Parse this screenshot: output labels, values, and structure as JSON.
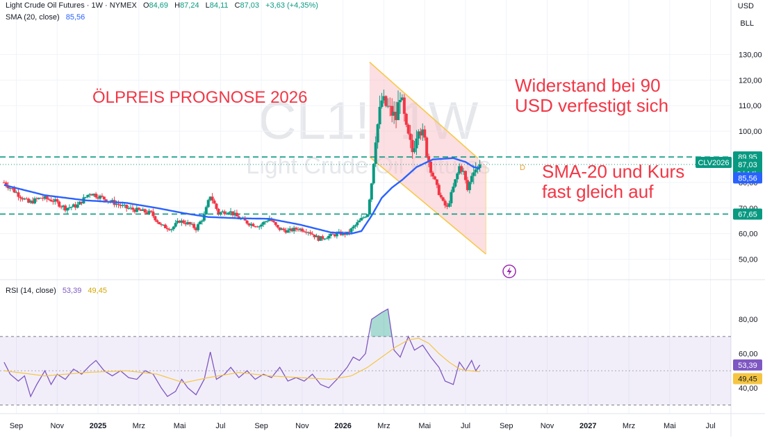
{
  "header": {
    "symbol_line": "Light Crude Oil Futures · 1W · NYMEX",
    "o_label": "O",
    "o_value": "84,69",
    "h_label": "H",
    "h_value": "87,24",
    "l_label": "L",
    "l_value": "84,11",
    "c_label": "C",
    "c_value": "87,03",
    "change": "+3,63 (+4,35%)",
    "sma_label": "SMA (20, close)",
    "sma_value": "85,56",
    "rsi_label": "RSI (14, close)",
    "rsi_value": "53,39",
    "rsi_ma_value": "49,45"
  },
  "top_right": {
    "currency": "USD",
    "unit": "BLL"
  },
  "watermark": {
    "symbol": "CL1!, 1W",
    "name": "Light Crude Oil Futures"
  },
  "annotations": {
    "title": "ÖLPREIS PROGNOSE 2026",
    "resistance_line1": "Widerstand bei 90",
    "resistance_line2": "USD verfestigt sich",
    "sma_line1": "SMA-20 und Kurs",
    "sma_line2": "fast gleich auf",
    "dividend_marker": "D"
  },
  "price_badges": {
    "resistance": "89,95",
    "last": "87,03",
    "countdown": "3d 14h",
    "sma": "85,56",
    "support": "67,65",
    "contract": "CLV2026",
    "rsi": "53,39",
    "rsi_ma": "49,45"
  },
  "colors": {
    "up": "#089981",
    "down": "#f23645",
    "sma": "#2962ff",
    "rsi": "#7e57c2",
    "rsi_ma": "#f5c542",
    "channel": "#f7c948",
    "channel_fill": "#f8c5cb",
    "level": "#089981"
  },
  "chart_data": {
    "type": "candlestick",
    "symbol": "CL1!",
    "interval": "1W",
    "y_axis": {
      "range": [
        45,
        135
      ],
      "ticks": [
        130,
        120,
        110,
        100,
        90,
        80,
        70,
        60,
        50
      ],
      "tick_labels": [
        "130,00",
        "120,00",
        "110,00",
        "100,00",
        "90,00",
        "80,00",
        "70,00",
        "60,00",
        "50,00"
      ]
    },
    "x_axis": {
      "labels": [
        "Sep",
        "Nov",
        "2025",
        "Mrz",
        "Mai",
        "Jul",
        "Sep",
        "Nov",
        "2026",
        "Mrz",
        "Mai",
        "Jul",
        "Sep",
        "Nov",
        "2027",
        "Mrz",
        "Mai",
        "Jul"
      ],
      "positions": [
        0.6,
        2.6,
        4.6,
        6.6,
        8.6,
        10.6,
        12.6,
        14.6,
        16.6,
        18.6,
        20.6,
        22.6,
        24.6,
        26.6,
        28.6,
        30.6,
        32.6,
        34.6
      ],
      "bold": [
        "2025",
        "2026",
        "2027"
      ],
      "range": [
        -0.2,
        35.6
      ]
    },
    "levels": {
      "resistance": 89.95,
      "last": 87.03,
      "support": 67.65
    },
    "channel": {
      "upper": [
        [
          17.9,
          127
        ],
        [
          23.2,
          89.5
        ]
      ],
      "lower": [
        [
          17.9,
          90
        ],
        [
          23.6,
          52
        ]
      ],
      "right_x": 23.6
    },
    "price_anchors": [
      [
        0,
        80
      ],
      [
        0.6,
        76
      ],
      [
        1.2,
        72
      ],
      [
        1.8,
        74
      ],
      [
        2.4,
        73
      ],
      [
        3.0,
        70
      ],
      [
        3.6,
        71
      ],
      [
        4.2,
        76
      ],
      [
        4.8,
        74
      ],
      [
        5.4,
        72
      ],
      [
        6.0,
        70
      ],
      [
        6.6,
        69
      ],
      [
        7.2,
        68
      ],
      [
        7.7,
        63
      ],
      [
        8.2,
        62
      ],
      [
        8.6,
        65
      ],
      [
        9.0,
        64
      ],
      [
        9.4,
        62
      ],
      [
        9.8,
        67
      ],
      [
        10.1,
        75
      ],
      [
        10.5,
        68
      ],
      [
        11.0,
        69
      ],
      [
        11.5,
        66
      ],
      [
        12.0,
        64
      ],
      [
        12.5,
        63
      ],
      [
        13.0,
        66
      ],
      [
        13.4,
        62
      ],
      [
        13.9,
        61
      ],
      [
        14.4,
        62
      ],
      [
        14.9,
        61
      ],
      [
        15.4,
        58
      ],
      [
        15.9,
        59
      ],
      [
        16.4,
        60
      ],
      [
        16.8,
        60
      ],
      [
        17.3,
        64
      ],
      [
        17.8,
        68
      ],
      [
        18.0,
        80
      ],
      [
        18.2,
        98
      ],
      [
        18.5,
        112
      ],
      [
        18.9,
        108
      ],
      [
        19.2,
        105
      ],
      [
        19.4,
        115
      ],
      [
        19.7,
        100
      ],
      [
        20.0,
        92
      ],
      [
        20.3,
        103
      ],
      [
        20.6,
        96
      ],
      [
        20.9,
        85
      ],
      [
        21.2,
        78
      ],
      [
        21.5,
        72
      ],
      [
        21.7,
        70
      ],
      [
        22.0,
        78
      ],
      [
        22.3,
        86
      ],
      [
        22.5,
        84
      ],
      [
        22.7,
        77
      ],
      [
        23.0,
        86
      ],
      [
        23.2,
        85
      ],
      [
        23.3,
        87.03
      ]
    ],
    "sma_anchors": [
      [
        0,
        79
      ],
      [
        2,
        75
      ],
      [
        4,
        73
      ],
      [
        6,
        72
      ],
      [
        7.5,
        70
      ],
      [
        8.8,
        68
      ],
      [
        10,
        66.5
      ],
      [
        11.5,
        66
      ],
      [
        13,
        65.8
      ],
      [
        14.5,
        63.5
      ],
      [
        16,
        60.5
      ],
      [
        17,
        60
      ],
      [
        17.5,
        61
      ],
      [
        18,
        67
      ],
      [
        18.5,
        74
      ],
      [
        19,
        78
      ],
      [
        19.5,
        81
      ],
      [
        20.2,
        86
      ],
      [
        21,
        89
      ],
      [
        22,
        89.5
      ],
      [
        22.6,
        88
      ],
      [
        23,
        86
      ],
      [
        23.3,
        85.56
      ]
    ],
    "rsi": {
      "y_range": [
        25,
        93
      ],
      "overbought": 70,
      "oversold": 30,
      "mid": 50,
      "tick_labels": {
        "80": "80,00",
        "60": "60,00",
        "40": "40,00"
      },
      "anchors": [
        [
          0,
          55
        ],
        [
          0.3,
          48
        ],
        [
          0.7,
          44
        ],
        [
          1.0,
          47
        ],
        [
          1.3,
          35
        ],
        [
          1.6,
          42
        ],
        [
          2.0,
          50
        ],
        [
          2.3,
          42
        ],
        [
          2.6,
          48
        ],
        [
          3.0,
          45
        ],
        [
          3.4,
          51
        ],
        [
          3.8,
          48
        ],
        [
          4.2,
          53
        ],
        [
          4.5,
          56
        ],
        [
          4.9,
          50
        ],
        [
          5.3,
          47
        ],
        [
          5.7,
          50
        ],
        [
          6.1,
          46
        ],
        [
          6.5,
          45
        ],
        [
          6.9,
          50
        ],
        [
          7.3,
          48
        ],
        [
          7.7,
          40
        ],
        [
          8.0,
          35
        ],
        [
          8.4,
          38
        ],
        [
          8.7,
          45
        ],
        [
          9.0,
          40
        ],
        [
          9.4,
          36
        ],
        [
          9.8,
          45
        ],
        [
          10.1,
          61
        ],
        [
          10.4,
          45
        ],
        [
          10.8,
          48
        ],
        [
          11.1,
          52
        ],
        [
          11.5,
          46
        ],
        [
          11.9,
          50
        ],
        [
          12.3,
          45
        ],
        [
          12.7,
          48
        ],
        [
          13.1,
          46
        ],
        [
          13.5,
          52
        ],
        [
          13.9,
          44
        ],
        [
          14.3,
          46
        ],
        [
          14.7,
          44
        ],
        [
          15.1,
          48
        ],
        [
          15.5,
          42
        ],
        [
          15.9,
          40
        ],
        [
          16.3,
          45
        ],
        [
          16.8,
          52
        ],
        [
          17.1,
          58
        ],
        [
          17.4,
          56
        ],
        [
          17.7,
          60
        ],
        [
          18.0,
          80
        ],
        [
          18.5,
          84
        ],
        [
          18.8,
          86
        ],
        [
          19.1,
          62
        ],
        [
          19.4,
          58
        ],
        [
          19.8,
          70
        ],
        [
          20.1,
          62
        ],
        [
          20.5,
          65
        ],
        [
          20.9,
          58
        ],
        [
          21.3,
          52
        ],
        [
          21.6,
          44
        ],
        [
          22.0,
          42
        ],
        [
          22.3,
          55
        ],
        [
          22.6,
          50
        ],
        [
          22.9,
          56
        ],
        [
          23.1,
          50
        ],
        [
          23.3,
          53.39
        ]
      ],
      "ma_anchors": [
        [
          0,
          50
        ],
        [
          2,
          47
        ],
        [
          4,
          49
        ],
        [
          6,
          50
        ],
        [
          7.5,
          48
        ],
        [
          8.8,
          43
        ],
        [
          10,
          46
        ],
        [
          11.5,
          49
        ],
        [
          13,
          47
        ],
        [
          14.5,
          46
        ],
        [
          16,
          45
        ],
        [
          17,
          47
        ],
        [
          17.8,
          52
        ],
        [
          18.5,
          58
        ],
        [
          19.2,
          64
        ],
        [
          19.8,
          68
        ],
        [
          20.3,
          69
        ],
        [
          20.8,
          66
        ],
        [
          21.3,
          60
        ],
        [
          21.8,
          55
        ],
        [
          22.3,
          51
        ],
        [
          22.8,
          50
        ],
        [
          23.3,
          49.45
        ]
      ]
    }
  }
}
